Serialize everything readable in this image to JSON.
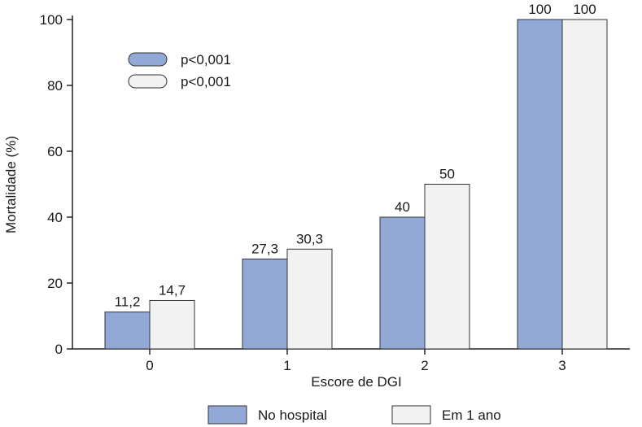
{
  "chart_data": {
    "type": "bar",
    "title": "",
    "xlabel": "Escore de DGI",
    "ylabel": "Mortalidade (%)",
    "ylim": [
      0,
      100
    ],
    "yticks": [
      0,
      20,
      40,
      60,
      80,
      100
    ],
    "categories": [
      "0",
      "1",
      "2",
      "3"
    ],
    "series": [
      {
        "name": "No hospital",
        "color": "#92a9d8",
        "values": [
          11.2,
          27.3,
          40,
          100
        ],
        "labels": [
          "11,2",
          "27,3",
          "40",
          "100"
        ],
        "pvalue": "p<0,001"
      },
      {
        "name": "Em 1 ano",
        "color": "#f1f2f1",
        "values": [
          14.7,
          30.3,
          50,
          100
        ],
        "labels": [
          "14,7",
          "30,3",
          "50",
          "100"
        ],
        "pvalue": "p<0,001"
      }
    ],
    "legend_position": "bottom",
    "pvalue_legend_position": "top-left",
    "grid": false
  }
}
